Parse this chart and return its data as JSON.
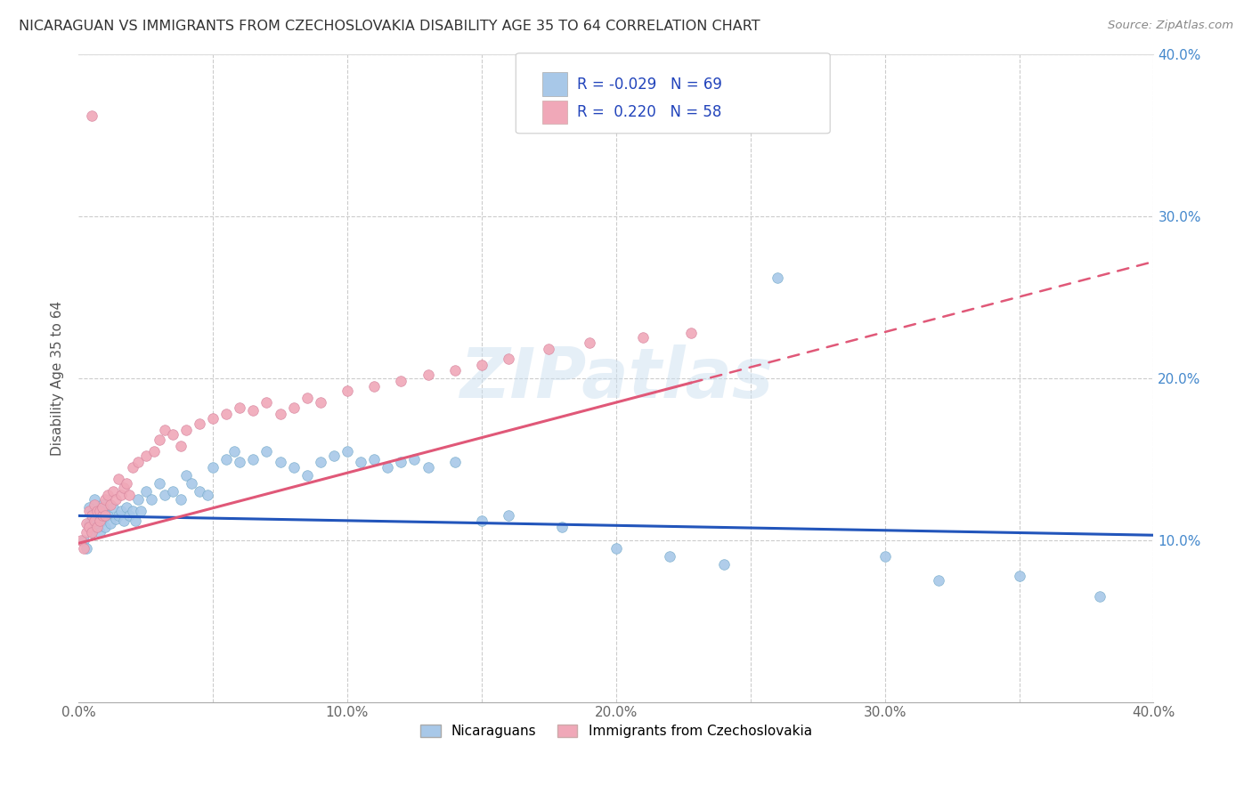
{
  "title": "NICARAGUAN VS IMMIGRANTS FROM CZECHOSLOVAKIA DISABILITY AGE 35 TO 64 CORRELATION CHART",
  "source": "Source: ZipAtlas.com",
  "ylabel": "Disability Age 35 to 64",
  "xlim": [
    0.0,
    0.4
  ],
  "ylim": [
    0.0,
    0.4
  ],
  "xticks": [
    0.0,
    0.05,
    0.1,
    0.15,
    0.2,
    0.25,
    0.3,
    0.35,
    0.4
  ],
  "yticks": [
    0.1,
    0.2,
    0.3,
    0.4
  ],
  "xticklabels": [
    "0.0%",
    "",
    "10.0%",
    "",
    "20.0%",
    "",
    "30.0%",
    "",
    "40.0%"
  ],
  "yticklabels_right": [
    "10.0%",
    "20.0%",
    "30.0%",
    "40.0%"
  ],
  "blue_color": "#a8c8e8",
  "pink_color": "#f0a8b8",
  "blue_line_color": "#2255bb",
  "pink_line_color": "#e05878",
  "R_blue": -0.029,
  "N_blue": 69,
  "R_pink": 0.22,
  "N_pink": 58,
  "watermark": "ZIPatlas",
  "blue_scatter_x": [
    0.002,
    0.003,
    0.004,
    0.004,
    0.005,
    0.005,
    0.006,
    0.006,
    0.007,
    0.007,
    0.008,
    0.008,
    0.009,
    0.009,
    0.01,
    0.01,
    0.011,
    0.012,
    0.013,
    0.014,
    0.015,
    0.016,
    0.017,
    0.018,
    0.019,
    0.02,
    0.021,
    0.022,
    0.023,
    0.025,
    0.027,
    0.03,
    0.032,
    0.035,
    0.038,
    0.04,
    0.042,
    0.045,
    0.048,
    0.05,
    0.055,
    0.058,
    0.06,
    0.065,
    0.07,
    0.075,
    0.08,
    0.085,
    0.09,
    0.095,
    0.1,
    0.105,
    0.11,
    0.115,
    0.12,
    0.125,
    0.13,
    0.14,
    0.15,
    0.16,
    0.18,
    0.2,
    0.22,
    0.24,
    0.26,
    0.3,
    0.32,
    0.35,
    0.38
  ],
  "blue_scatter_y": [
    0.1,
    0.095,
    0.11,
    0.12,
    0.105,
    0.115,
    0.11,
    0.125,
    0.108,
    0.118,
    0.105,
    0.115,
    0.112,
    0.122,
    0.108,
    0.118,
    0.115,
    0.11,
    0.12,
    0.113,
    0.115,
    0.118,
    0.112,
    0.12,
    0.115,
    0.118,
    0.112,
    0.125,
    0.118,
    0.13,
    0.125,
    0.135,
    0.128,
    0.13,
    0.125,
    0.14,
    0.135,
    0.13,
    0.128,
    0.145,
    0.15,
    0.155,
    0.148,
    0.15,
    0.155,
    0.148,
    0.145,
    0.14,
    0.148,
    0.152,
    0.155,
    0.148,
    0.15,
    0.145,
    0.148,
    0.15,
    0.145,
    0.148,
    0.112,
    0.115,
    0.108,
    0.095,
    0.09,
    0.085,
    0.262,
    0.09,
    0.075,
    0.078,
    0.065
  ],
  "pink_scatter_x": [
    0.001,
    0.002,
    0.003,
    0.003,
    0.004,
    0.004,
    0.005,
    0.005,
    0.006,
    0.006,
    0.007,
    0.007,
    0.008,
    0.008,
    0.009,
    0.009,
    0.01,
    0.01,
    0.011,
    0.012,
    0.013,
    0.014,
    0.015,
    0.016,
    0.017,
    0.018,
    0.019,
    0.02,
    0.022,
    0.025,
    0.028,
    0.03,
    0.032,
    0.035,
    0.038,
    0.04,
    0.045,
    0.05,
    0.055,
    0.06,
    0.065,
    0.07,
    0.075,
    0.08,
    0.085,
    0.09,
    0.1,
    0.11,
    0.12,
    0.13,
    0.14,
    0.15,
    0.16,
    0.175,
    0.19,
    0.21,
    0.228,
    0.005
  ],
  "pink_scatter_y": [
    0.1,
    0.095,
    0.11,
    0.105,
    0.108,
    0.118,
    0.115,
    0.105,
    0.112,
    0.122,
    0.108,
    0.118,
    0.112,
    0.118,
    0.115,
    0.12,
    0.115,
    0.125,
    0.128,
    0.122,
    0.13,
    0.125,
    0.138,
    0.128,
    0.132,
    0.135,
    0.128,
    0.145,
    0.148,
    0.152,
    0.155,
    0.162,
    0.168,
    0.165,
    0.158,
    0.168,
    0.172,
    0.175,
    0.178,
    0.182,
    0.18,
    0.185,
    0.178,
    0.182,
    0.188,
    0.185,
    0.192,
    0.195,
    0.198,
    0.202,
    0.205,
    0.208,
    0.212,
    0.218,
    0.222,
    0.225,
    0.228,
    0.362
  ],
  "blue_trend_x0": 0.0,
  "blue_trend_x1": 0.4,
  "blue_trend_y0": 0.115,
  "blue_trend_y1": 0.103,
  "pink_trend_x0": 0.0,
  "pink_trend_x1": 0.4,
  "pink_trend_y0": 0.098,
  "pink_trend_y1": 0.272
}
